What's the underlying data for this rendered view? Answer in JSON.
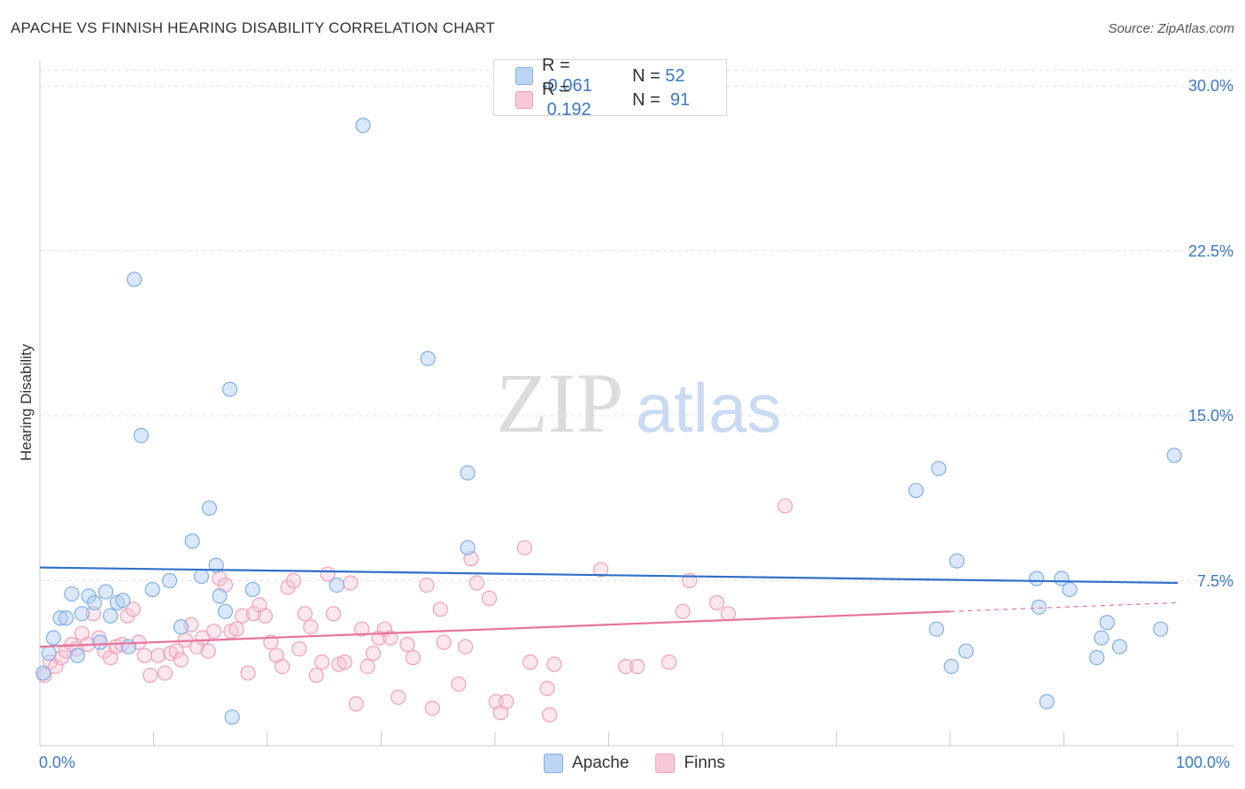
{
  "title": "APACHE VS FINNISH HEARING DISABILITY CORRELATION CHART",
  "source": "Source: ZipAtlas.com",
  "legend_top": {
    "rows": [
      {
        "r_label": "R =",
        "r_value": "-0.061",
        "n_label": "N =",
        "n_value": "52"
      },
      {
        "r_label": "R =",
        "r_value": "0.192",
        "n_label": "N =",
        "n_value": "91"
      }
    ]
  },
  "legend_bottom": [
    "Apache",
    "Finns"
  ],
  "watermark": {
    "zip": "ZIP",
    "atlas": "atlas"
  },
  "chart_data": {
    "type": "scatter",
    "title": "APACHE VS FINNISH HEARING DISABILITY CORRELATION CHART",
    "xlabel": "",
    "ylabel": "Hearing Disability",
    "xlim": [
      0,
      100
    ],
    "ylim": [
      0,
      31
    ],
    "x_tick_labels": [
      "0.0%",
      "100.0%"
    ],
    "y_ticks": [
      7.5,
      15.0,
      22.5,
      30.0
    ],
    "y_tick_labels": [
      "7.5%",
      "15.0%",
      "22.5%",
      "30.0%"
    ],
    "colors": {
      "apache": "#7fb0e8",
      "finns": "#f1a0ba",
      "apache_line": "#2f6fc9",
      "finns_line": "#e6739b"
    },
    "series": [
      {
        "name": "Apache",
        "r": -0.061,
        "n": 52,
        "trend": {
          "x0": 0,
          "y0": 8.1,
          "x1": 100,
          "y1": 7.4
        },
        "points": [
          [
            0.3,
            3.3
          ],
          [
            0.8,
            4.2
          ],
          [
            1.2,
            4.9
          ],
          [
            1.8,
            5.8
          ],
          [
            2.3,
            5.8
          ],
          [
            2.8,
            6.9
          ],
          [
            3.3,
            4.1
          ],
          [
            3.7,
            6.0
          ],
          [
            4.3,
            6.8
          ],
          [
            4.8,
            6.5
          ],
          [
            5.3,
            4.7
          ],
          [
            5.8,
            7.0
          ],
          [
            6.2,
            5.9
          ],
          [
            6.8,
            6.5
          ],
          [
            7.3,
            6.6
          ],
          [
            7.8,
            4.5
          ],
          [
            8.3,
            21.2
          ],
          [
            8.9,
            14.1
          ],
          [
            9.9,
            7.1
          ],
          [
            11.4,
            7.5
          ],
          [
            12.4,
            5.4
          ],
          [
            13.4,
            9.3
          ],
          [
            14.2,
            7.7
          ],
          [
            14.9,
            10.8
          ],
          [
            15.5,
            8.2
          ],
          [
            15.8,
            6.8
          ],
          [
            16.3,
            6.1
          ],
          [
            16.7,
            16.2
          ],
          [
            16.9,
            1.3
          ],
          [
            18.7,
            7.1
          ],
          [
            26.1,
            7.3
          ],
          [
            28.4,
            28.2
          ],
          [
            34.1,
            17.6
          ],
          [
            37.6,
            12.4
          ],
          [
            37.6,
            9.0
          ],
          [
            77.0,
            11.6
          ],
          [
            78.8,
            5.3
          ],
          [
            79.0,
            12.6
          ],
          [
            80.1,
            3.6
          ],
          [
            80.6,
            8.4
          ],
          [
            81.4,
            4.3
          ],
          [
            87.6,
            7.6
          ],
          [
            87.8,
            6.3
          ],
          [
            88.5,
            2.0
          ],
          [
            89.8,
            7.6
          ],
          [
            90.5,
            7.1
          ],
          [
            92.9,
            4.0
          ],
          [
            93.3,
            4.9
          ],
          [
            93.8,
            5.6
          ],
          [
            94.9,
            4.5
          ],
          [
            98.5,
            5.3
          ],
          [
            99.7,
            13.2
          ]
        ]
      },
      {
        "name": "Finns",
        "r": 0.192,
        "n": 91,
        "trend": {
          "x0": 0,
          "y0": 4.5,
          "x1": 80,
          "y1": 6.1,
          "dash_x1": 100,
          "dash_y1": 6.5
        },
        "points": [
          [
            0.4,
            3.2
          ],
          [
            0.9,
            3.8
          ],
          [
            1.4,
            3.6
          ],
          [
            1.9,
            4.0
          ],
          [
            2.3,
            4.3
          ],
          [
            2.8,
            4.6
          ],
          [
            3.2,
            4.4
          ],
          [
            3.7,
            5.1
          ],
          [
            4.2,
            4.6
          ],
          [
            4.7,
            6.0
          ],
          [
            5.2,
            4.9
          ],
          [
            5.7,
            4.3
          ],
          [
            6.2,
            4.0
          ],
          [
            6.7,
            4.5
          ],
          [
            7.2,
            4.6
          ],
          [
            7.7,
            5.9
          ],
          [
            8.2,
            6.2
          ],
          [
            8.7,
            4.7
          ],
          [
            9.2,
            4.1
          ],
          [
            9.7,
            3.2
          ],
          [
            10.4,
            4.1
          ],
          [
            11.0,
            3.3
          ],
          [
            11.5,
            4.2
          ],
          [
            12.0,
            4.3
          ],
          [
            12.4,
            3.9
          ],
          [
            12.8,
            4.8
          ],
          [
            13.3,
            5.5
          ],
          [
            13.8,
            4.5
          ],
          [
            14.3,
            4.9
          ],
          [
            14.8,
            4.3
          ],
          [
            15.3,
            5.2
          ],
          [
            15.8,
            7.6
          ],
          [
            16.3,
            7.3
          ],
          [
            16.8,
            5.2
          ],
          [
            17.3,
            5.3
          ],
          [
            17.8,
            5.9
          ],
          [
            18.3,
            3.3
          ],
          [
            18.8,
            6.0
          ],
          [
            19.3,
            6.4
          ],
          [
            19.8,
            5.9
          ],
          [
            20.3,
            4.7
          ],
          [
            20.8,
            4.1
          ],
          [
            21.3,
            3.6
          ],
          [
            21.8,
            7.2
          ],
          [
            22.3,
            7.5
          ],
          [
            22.8,
            4.4
          ],
          [
            23.3,
            6.0
          ],
          [
            23.8,
            5.4
          ],
          [
            24.3,
            3.2
          ],
          [
            24.8,
            3.8
          ],
          [
            25.3,
            7.8
          ],
          [
            25.8,
            6.0
          ],
          [
            26.3,
            3.7
          ],
          [
            26.8,
            3.8
          ],
          [
            27.3,
            7.4
          ],
          [
            27.8,
            1.9
          ],
          [
            28.3,
            5.3
          ],
          [
            28.8,
            3.6
          ],
          [
            29.3,
            4.2
          ],
          [
            29.8,
            4.9
          ],
          [
            30.3,
            5.3
          ],
          [
            30.8,
            4.9
          ],
          [
            31.5,
            2.2
          ],
          [
            32.3,
            4.6
          ],
          [
            32.8,
            4.0
          ],
          [
            34.0,
            7.3
          ],
          [
            34.5,
            1.7
          ],
          [
            35.2,
            6.2
          ],
          [
            35.5,
            4.7
          ],
          [
            36.8,
            2.8
          ],
          [
            37.4,
            4.5
          ],
          [
            37.9,
            8.5
          ],
          [
            38.4,
            7.4
          ],
          [
            39.5,
            6.7
          ],
          [
            40.1,
            2.0
          ],
          [
            40.5,
            1.5
          ],
          [
            41.0,
            2.0
          ],
          [
            42.6,
            9.0
          ],
          [
            43.1,
            3.8
          ],
          [
            44.6,
            2.6
          ],
          [
            44.8,
            1.4
          ],
          [
            45.2,
            3.7
          ],
          [
            49.3,
            8.0
          ],
          [
            51.5,
            3.6
          ],
          [
            52.5,
            3.6
          ],
          [
            55.3,
            3.8
          ],
          [
            56.5,
            6.1
          ],
          [
            57.1,
            7.5
          ],
          [
            59.5,
            6.5
          ],
          [
            60.5,
            6.0
          ],
          [
            65.5,
            10.9
          ]
        ]
      }
    ]
  }
}
